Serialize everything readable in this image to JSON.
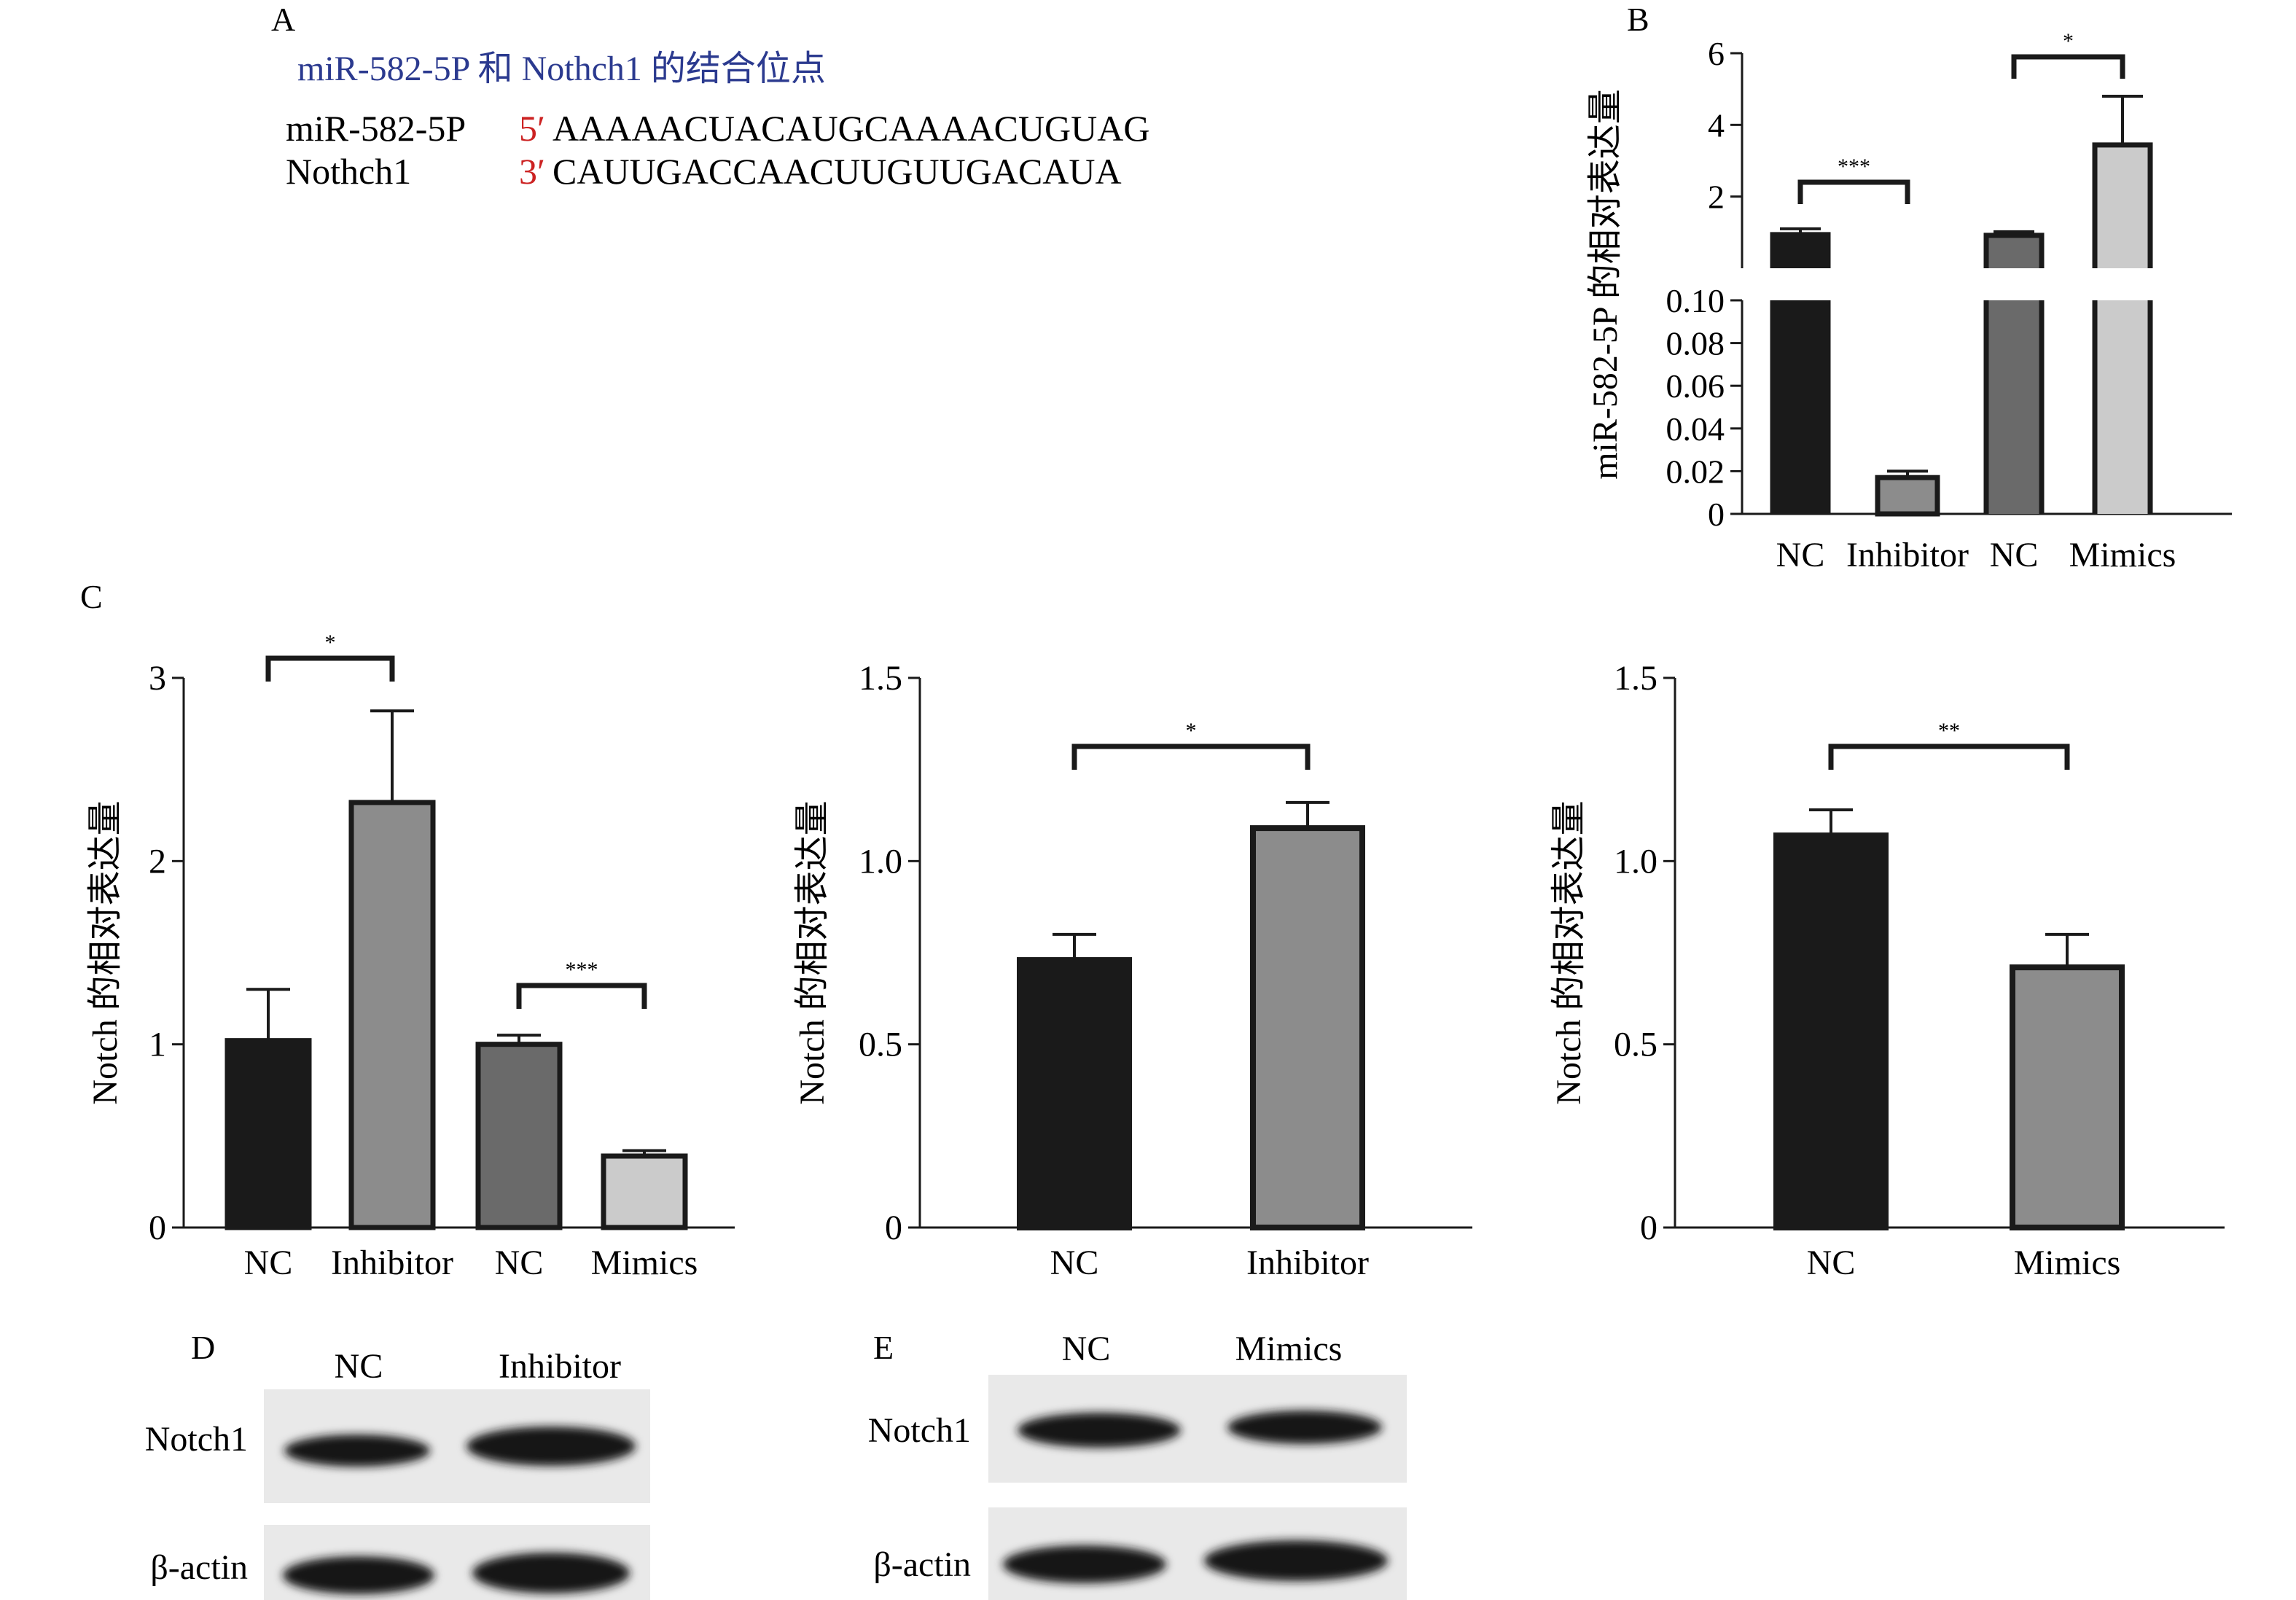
{
  "panel_labels": {
    "a": "A",
    "b": "B",
    "c": "C",
    "d": "D",
    "e": "E"
  },
  "panelA": {
    "title": "miR-582-5P 和 Nothch1 的结合位点",
    "rows": [
      {
        "name": "miR-582-5P",
        "end": "5′",
        "seq": "AAAAACUACAUGCAAAACUGUAG"
      },
      {
        "name": "Nothch1",
        "end": "3′",
        "seq": "CAUUGACCAACUUGUUGACAUA"
      }
    ]
  },
  "colors": {
    "black_bar": "#1a1a1a",
    "gray_bar": "#8c8c8c",
    "dark_gray_bar": "#6a6a6a",
    "light_gray_bar": "#cbcbcb",
    "sequence_title": "#2b3a8f",
    "sequence_end": "#cc2222"
  },
  "chart_data": [
    {
      "id": "B",
      "type": "bar",
      "categories": [
        "NC",
        "Inhibitor",
        "NC",
        "Mimics"
      ],
      "values": [
        1.0,
        0.017,
        0.98,
        3.5
      ],
      "errors": [
        0.1,
        0.003,
        0.04,
        1.3
      ],
      "bar_colors": [
        "#1a1a1a",
        "#8c8c8c",
        "#6a6a6a",
        "#cbcbcb"
      ],
      "ylabel": "miR-582-5P 的相对表达量",
      "broken_axis": true,
      "lower_ylim": [
        0,
        0.1
      ],
      "lower_ticks": [
        "0",
        "0.02",
        "0.04",
        "0.06",
        "0.08",
        "0.10"
      ],
      "upper_ylim": [
        0,
        6
      ],
      "upper_ticks": [
        "2",
        "4",
        "6"
      ],
      "significance": [
        {
          "from": 0,
          "to": 1,
          "label": "***"
        },
        {
          "from": 2,
          "to": 3,
          "label": "*"
        }
      ]
    },
    {
      "id": "C1",
      "type": "bar",
      "categories": [
        "NC",
        "Inhibitor",
        "NC",
        "Mimics"
      ],
      "values": [
        1.02,
        2.32,
        1.0,
        0.39
      ],
      "errors": [
        0.28,
        0.5,
        0.05,
        0.03
      ],
      "bar_colors": [
        "#1a1a1a",
        "#8c8c8c",
        "#6a6a6a",
        "#cbcbcb"
      ],
      "ylabel": "Notch 的相对表达量",
      "ylim": [
        0,
        3
      ],
      "ticks": [
        "0",
        "1",
        "2",
        "3"
      ],
      "significance": [
        {
          "from": 0,
          "to": 1,
          "label": "*"
        },
        {
          "from": 2,
          "to": 3,
          "label": "***"
        }
      ]
    },
    {
      "id": "C2",
      "type": "bar",
      "categories": [
        "NC",
        "Inhibitor"
      ],
      "values": [
        0.73,
        1.09
      ],
      "errors": [
        0.07,
        0.07
      ],
      "bar_colors": [
        "#1a1a1a",
        "#8c8c8c"
      ],
      "ylabel": "Notch 的相对表达量",
      "ylim": [
        0,
        1.5
      ],
      "ticks": [
        "0",
        "0.5",
        "1.0",
        "1.5"
      ],
      "significance": [
        {
          "from": 0,
          "to": 1,
          "label": "*"
        }
      ]
    },
    {
      "id": "C3",
      "type": "bar",
      "categories": [
        "NC",
        "Mimics"
      ],
      "values": [
        1.07,
        0.71
      ],
      "errors": [
        0.07,
        0.09
      ],
      "bar_colors": [
        "#1a1a1a",
        "#8c8c8c"
      ],
      "ylabel": "Notch 的相对表达量",
      "ylim": [
        0,
        1.5
      ],
      "ticks": [
        "0",
        "0.5",
        "1.0",
        "1.5"
      ],
      "significance": [
        {
          "from": 0,
          "to": 1,
          "label": "**"
        }
      ]
    }
  ],
  "blots": [
    {
      "id": "D",
      "lanes": [
        "NC",
        "Inhibitor"
      ],
      "rows": [
        "Notch1",
        "β-actin"
      ]
    },
    {
      "id": "E",
      "lanes": [
        "NC",
        "Mimics"
      ],
      "rows": [
        "Notch1",
        "β-actin"
      ]
    }
  ]
}
